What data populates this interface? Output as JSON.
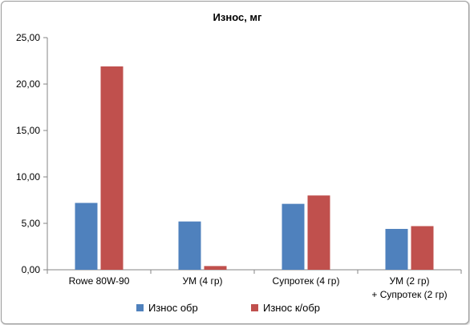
{
  "chart_data": {
    "type": "bar",
    "title": "Износ, мг",
    "xlabel": "",
    "ylabel": "",
    "categories": [
      [
        "Rowe 80W-90"
      ],
      [
        "УМ (4 гр)"
      ],
      [
        "Супротек (4 гр)"
      ],
      [
        "УМ (2 гр)",
        "+ Супротек (2 гр)"
      ]
    ],
    "series": [
      {
        "name": "Износ обр",
        "color": "#4f81bd",
        "values": [
          7.2,
          5.2,
          7.1,
          4.4
        ]
      },
      {
        "name": "Износ к/обр",
        "color": "#c0504d",
        "values": [
          21.9,
          0.4,
          8.0,
          4.7
        ]
      }
    ],
    "ylim": [
      0,
      25
    ],
    "yticks": [
      "0,00",
      "5,00",
      "10,00",
      "15,00",
      "20,00",
      "25,00"
    ],
    "grid": false,
    "legend": "bottom"
  }
}
